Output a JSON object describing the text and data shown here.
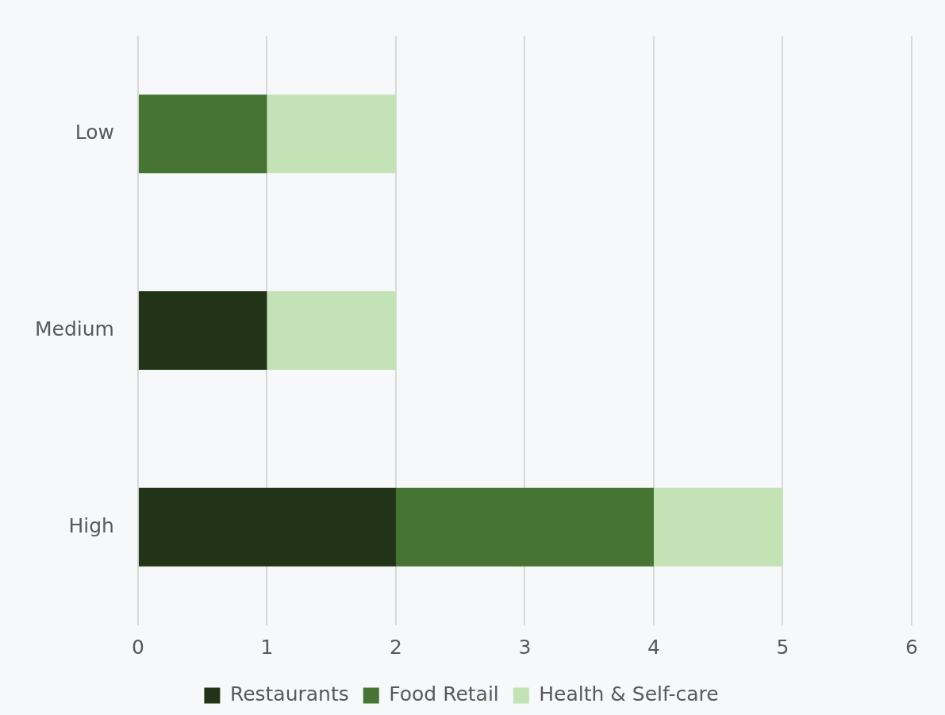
{
  "chart_data": {
    "type": "bar",
    "orientation": "horizontal",
    "stacked": true,
    "categories": [
      "Low",
      "Medium",
      "High"
    ],
    "series": [
      {
        "name": "Restaurants",
        "color": "#213418",
        "values": [
          0,
          1,
          2
        ]
      },
      {
        "name": "Food Retail",
        "color": "#467533",
        "values": [
          1,
          0,
          2
        ]
      },
      {
        "name": "Health & Self-care",
        "color": "#c3e2b5",
        "values": [
          1,
          1,
          1
        ]
      }
    ],
    "xlim": [
      0,
      6
    ],
    "xticks": [
      0,
      1,
      2,
      3,
      4,
      5,
      6
    ],
    "grid": "x",
    "legend": "bottom"
  }
}
